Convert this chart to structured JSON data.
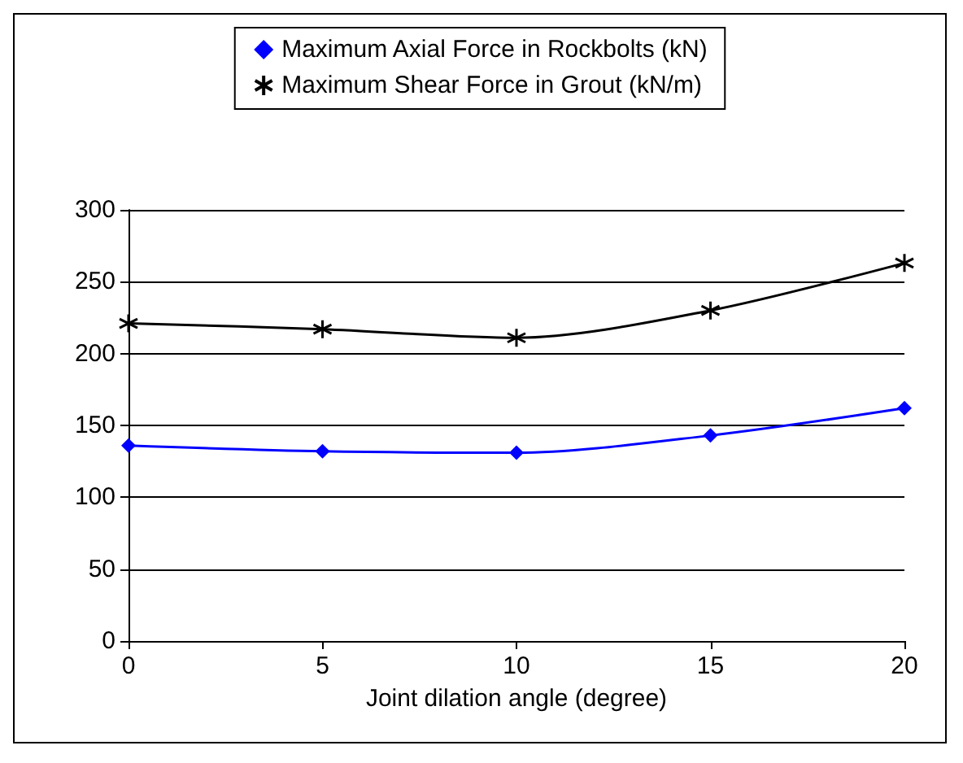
{
  "chart_data": {
    "type": "line",
    "xlabel": "Joint dilation angle (degree)",
    "x": [
      0,
      5,
      10,
      15,
      20
    ],
    "xlim": [
      0,
      20
    ],
    "xticks": [
      0,
      5,
      10,
      15,
      20
    ],
    "ylim": [
      0,
      300
    ],
    "yticks": [
      0,
      50,
      100,
      150,
      200,
      250,
      300
    ],
    "grid": "y",
    "legend": "top",
    "line_style": "solid",
    "series": [
      {
        "name": "Maximum Axial Force in Rockbolts (kN)",
        "color": "#0000ff",
        "marker": "diamond",
        "values": [
          136,
          132,
          131,
          143,
          162
        ]
      },
      {
        "name": "Maximum Shear Force in Grout (kN/m)",
        "color": "#000000",
        "marker": "cross",
        "values": [
          221,
          217,
          211,
          230,
          263
        ]
      }
    ]
  }
}
